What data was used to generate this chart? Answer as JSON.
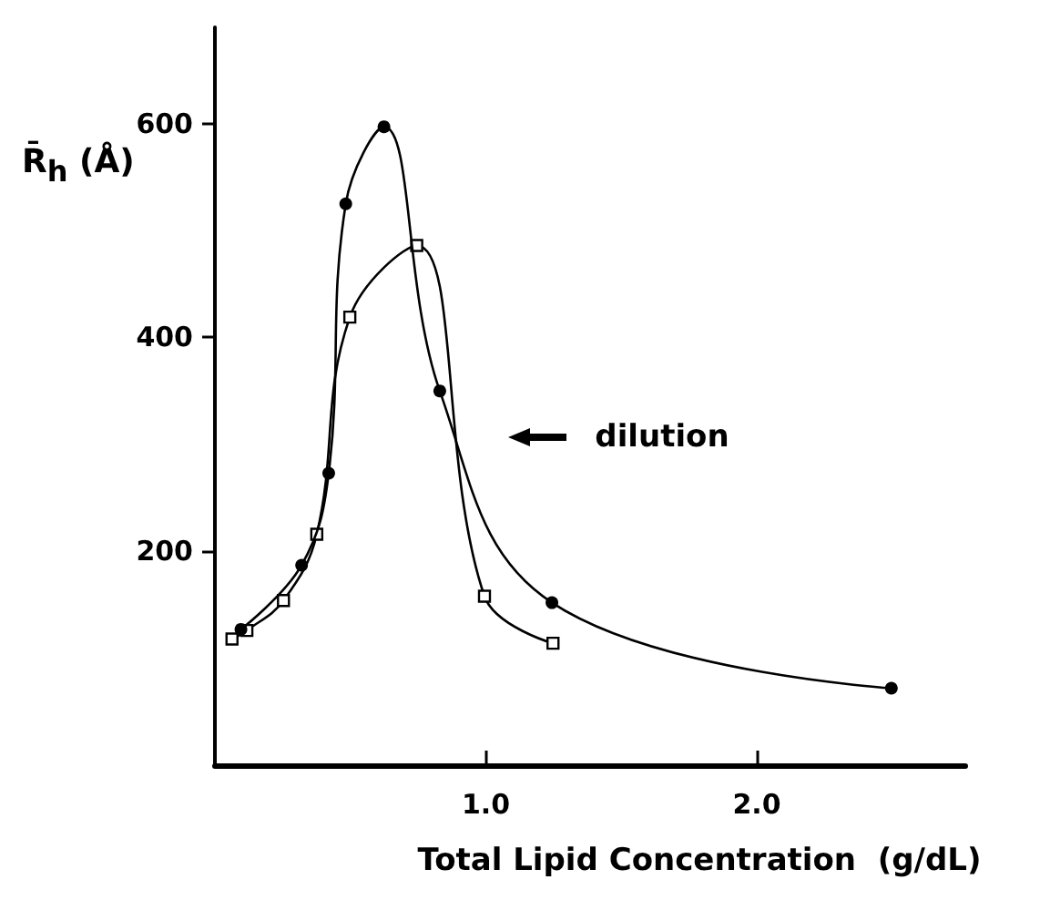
{
  "chart_data": {
    "type": "line",
    "xlabel": "Total Lipid Concentration  (g/dL)",
    "ylabel": "R̄$_{h}$ (Å)",
    "annotations": [
      "dilution"
    ],
    "xlim": [
      0,
      2.77
    ],
    "ylim": [
      0,
      690
    ],
    "xticks": [
      {
        "value": 1,
        "label": "1.0"
      },
      {
        "value": 2,
        "label": "2.0"
      }
    ],
    "yticks": [
      200,
      400,
      600
    ],
    "grid": false,
    "line_style": "solid",
    "series": [
      {
        "color": "#000000",
        "marker": "circle",
        "x": [
          0.096,
          0.32,
          0.42,
          0.483,
          0.624,
          0.83,
          1.244,
          2.497
        ],
        "values": [
          127,
          187,
          273,
          525,
          597,
          350,
          152,
          72
        ]
      },
      {
        "color": "#000000",
        "marker": "square",
        "x": [
          0.063,
          0.118,
          0.253,
          0.376,
          0.498,
          0.745,
          0.995,
          1.248
        ],
        "values": [
          118,
          126,
          154,
          216,
          419,
          486,
          158,
          114
        ]
      }
    ]
  }
}
